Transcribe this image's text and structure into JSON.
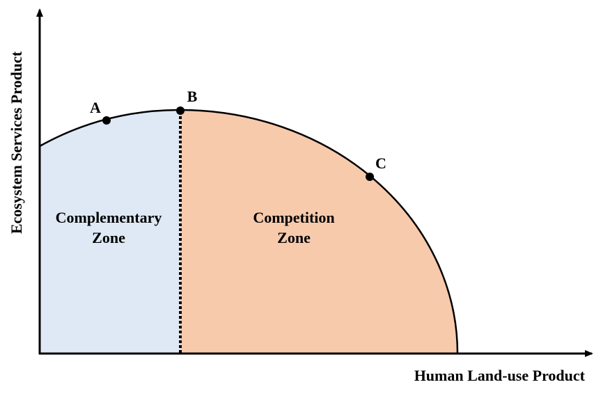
{
  "axes": {
    "x_label": "Human Land-use Product",
    "y_label": "Ecosystem Services Product"
  },
  "zones": {
    "complementary": {
      "line1": "Complementary",
      "line2": "Zone",
      "color": "#DEE9F5"
    },
    "competition": {
      "line1": "Competition",
      "line2": "Zone",
      "color": "#F7CAAC"
    }
  },
  "points": {
    "a": {
      "label": "A"
    },
    "b": {
      "label": "B"
    },
    "c": {
      "label": "C"
    }
  },
  "colors": {
    "curve": "#000000",
    "axis": "#000000",
    "divider": "#000000"
  }
}
